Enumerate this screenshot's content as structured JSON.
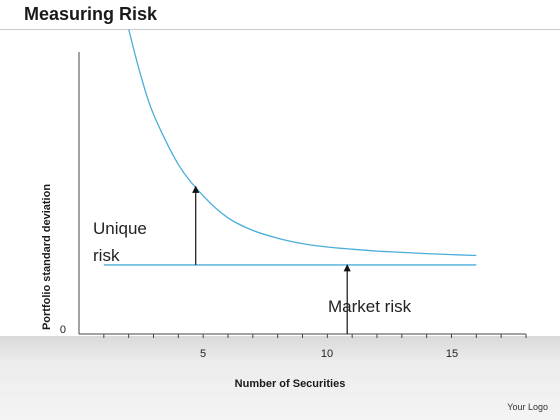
{
  "page": {
    "title": "Measuring Risk",
    "footer": "Your Logo"
  },
  "colors": {
    "curve": "#4aaed9",
    "axis": "#444444",
    "arrow": "#111111"
  },
  "chart_data": {
    "type": "line",
    "title": "Measuring Risk",
    "xlabel": "Number of Securities",
    "ylabel": "Portfolio standard deviation",
    "xlim": [
      -1,
      17
    ],
    "ylim": [
      0,
      100
    ],
    "x_ticks": [
      5,
      10,
      15
    ],
    "y_ticks": [
      0
    ],
    "grid": false,
    "legend": "none",
    "series": [
      {
        "x": [
          1,
          1.5,
          2,
          3,
          4,
          5,
          6,
          7,
          8,
          9,
          10,
          11,
          12,
          13,
          14,
          15
        ],
        "values": [
          97,
          82,
          70,
          54,
          44,
          37,
          33,
          30.5,
          28.8,
          27.7,
          27,
          26.4,
          26,
          25.6,
          25.3,
          25
        ]
      },
      {
        "x": [
          0,
          15
        ],
        "values": [
          22,
          22
        ]
      }
    ],
    "annotations": [
      {
        "text_lines": [
          "Unique",
          "risk"
        ],
        "x": 3.7,
        "from_y": 22,
        "to_y": 47
      },
      {
        "text_lines": [
          "Market risk"
        ],
        "x": 9.8,
        "from_y": 0,
        "to_y": 22
      }
    ]
  }
}
